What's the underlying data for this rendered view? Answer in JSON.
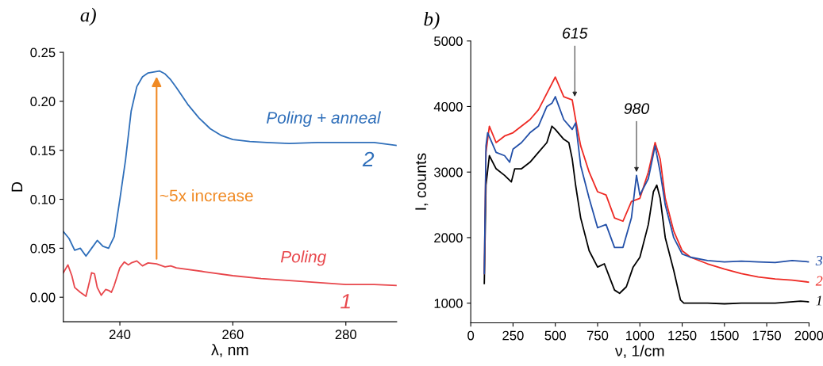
{
  "chart_data": [
    {
      "type": "line",
      "title": "a)",
      "xlabel": "λ, nm",
      "ylabel": "D",
      "xlim": [
        230,
        289
      ],
      "ylim": [
        -0.025,
        0.25
      ],
      "xticks": [
        240,
        260,
        280
      ],
      "yticks": [
        {
          "value": 0,
          "label": "0.00"
        },
        0.05,
        {
          "value": 0.1,
          "label": "0.10"
        },
        0.15,
        {
          "value": 0.2,
          "label": "0.20"
        },
        0.25
      ],
      "grid": false,
      "marker": "none",
      "line_style": "solid",
      "series": [
        {
          "name": "Poling + anneal",
          "color": "#2f6fba",
          "x": [
            230,
            231,
            232,
            233,
            234,
            235,
            236,
            237,
            238,
            239,
            240,
            241,
            242,
            243,
            244,
            245,
            246,
            247,
            248,
            249,
            250,
            252,
            254,
            256,
            258,
            260,
            263,
            266,
            270,
            275,
            280,
            285,
            289
          ],
          "values": [
            0.067,
            0.06,
            0.048,
            0.05,
            0.042,
            0.05,
            0.058,
            0.052,
            0.05,
            0.062,
            0.1,
            0.14,
            0.19,
            0.215,
            0.225,
            0.229,
            0.23,
            0.231,
            0.228,
            0.222,
            0.214,
            0.197,
            0.183,
            0.172,
            0.165,
            0.161,
            0.159,
            0.158,
            0.157,
            0.158,
            0.158,
            0.158,
            0.155
          ]
        },
        {
          "name": "Poling",
          "color": "#e8474c",
          "x": [
            230,
            230.8,
            231.5,
            232,
            233,
            234,
            235,
            235.5,
            236,
            236.7,
            237.5,
            238,
            238.5,
            239,
            240,
            240.8,
            241.5,
            242,
            243,
            244,
            245,
            246.5,
            248,
            249,
            250,
            255,
            260,
            265,
            270,
            275,
            280,
            285,
            289
          ],
          "values": [
            0.025,
            0.033,
            0.022,
            0.01,
            0.005,
            0.001,
            0.025,
            0.024,
            0.01,
            0.002,
            0.008,
            0.007,
            0.005,
            0.012,
            0.03,
            0.036,
            0.033,
            0.035,
            0.037,
            0.032,
            0.035,
            0.034,
            0.031,
            0.032,
            0.03,
            0.026,
            0.022,
            0.019,
            0.017,
            0.015,
            0.013,
            0.013,
            0.012
          ]
        }
      ],
      "annotations": [
        {
          "text": "2",
          "x": 284,
          "y": 0.158
        },
        {
          "text": "1",
          "x": 280,
          "y": 0.013
        },
        "~5x increase"
      ]
    },
    {
      "type": "line",
      "title": "b)",
      "xlabel": "ν, 1/cm",
      "ylabel": "I, counts",
      "xlim": [
        0,
        2000
      ],
      "ylim": [
        700,
        5000
      ],
      "xticks": [
        0,
        250,
        500,
        750,
        1000,
        1250,
        1500,
        1750,
        2000
      ],
      "yticks": [
        1000,
        2000,
        3000,
        4000,
        5000
      ],
      "grid": false,
      "marker": "none",
      "line_style": "solid",
      "series": [
        {
          "name": "1",
          "color": "#000000",
          "x": [
            80,
            90,
            110,
            150,
            200,
            240,
            260,
            300,
            350,
            400,
            450,
            480,
            500,
            550,
            580,
            600,
            620,
            650,
            700,
            750,
            790,
            820,
            850,
            880,
            920,
            960,
            1000,
            1050,
            1080,
            1100,
            1120,
            1150,
            1200,
            1240,
            1260,
            1400,
            1500,
            1600,
            1800,
            1950,
            2000
          ],
          "values": [
            1300,
            2800,
            3250,
            3050,
            2950,
            2850,
            3050,
            3050,
            3150,
            3300,
            3450,
            3700,
            3650,
            3500,
            3450,
            3200,
            2800,
            2300,
            1800,
            1550,
            1600,
            1400,
            1200,
            1150,
            1250,
            1550,
            1700,
            2200,
            2700,
            2800,
            2600,
            2000,
            1500,
            1050,
            1000,
            1000,
            990,
            1000,
            1000,
            1030,
            1020
          ]
        },
        {
          "name": "2",
          "color": "#ee2a24",
          "x": [
            80,
            90,
            110,
            150,
            200,
            250,
            300,
            350,
            400,
            450,
            500,
            550,
            600,
            620,
            650,
            700,
            750,
            800,
            850,
            900,
            950,
            1000,
            1050,
            1090,
            1120,
            1150,
            1200,
            1250,
            1300,
            1400,
            1500,
            1600,
            1700,
            1800,
            1900,
            2000
          ],
          "values": [
            1450,
            3300,
            3700,
            3450,
            3550,
            3600,
            3700,
            3800,
            3950,
            4200,
            4450,
            4150,
            4100,
            3800,
            3400,
            3000,
            2700,
            2650,
            2300,
            2250,
            2550,
            2600,
            3000,
            3450,
            3200,
            2600,
            2100,
            1800,
            1700,
            1600,
            1520,
            1450,
            1400,
            1370,
            1350,
            1320
          ]
        },
        {
          "name": "3",
          "color": "#2350a8",
          "x": [
            80,
            90,
            100,
            150,
            200,
            230,
            250,
            300,
            350,
            400,
            450,
            480,
            500,
            550,
            600,
            620,
            650,
            700,
            750,
            800,
            850,
            900,
            950,
            980,
            1000,
            1050,
            1090,
            1120,
            1150,
            1200,
            1250,
            1300,
            1400,
            1500,
            1600,
            1700,
            1800,
            1900,
            2000
          ],
          "values": [
            1450,
            3400,
            3600,
            3300,
            3250,
            3150,
            3350,
            3450,
            3600,
            3700,
            4000,
            4050,
            4150,
            3800,
            3650,
            3750,
            3100,
            2600,
            2150,
            2200,
            1850,
            1850,
            2300,
            2950,
            2650,
            2900,
            3400,
            3000,
            2500,
            2000,
            1750,
            1700,
            1650,
            1630,
            1640,
            1630,
            1620,
            1650,
            1630
          ]
        }
      ],
      "annotations": [
        {
          "text": "615",
          "x": 615,
          "y": 4150
        },
        {
          "text": "980",
          "x": 980,
          "y": 3000
        }
      ]
    }
  ]
}
